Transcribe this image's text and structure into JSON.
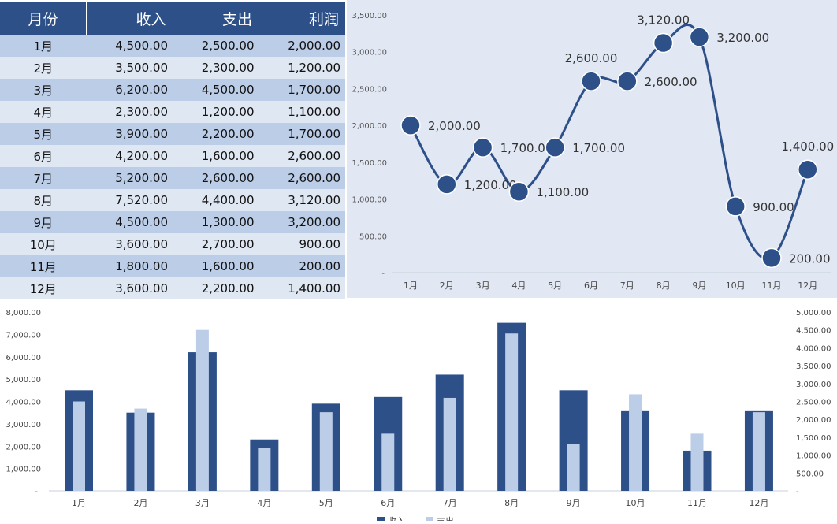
{
  "table": {
    "headers": [
      "月份",
      "收入",
      "支出",
      "利润"
    ],
    "rows": [
      [
        "1月",
        "4,500.00",
        "2,500.00",
        "2,000.00"
      ],
      [
        "2月",
        "3,500.00",
        "2,300.00",
        "1,200.00"
      ],
      [
        "3月",
        "6,200.00",
        "4,500.00",
        "1,700.00"
      ],
      [
        "4月",
        "2,300.00",
        "1,200.00",
        "1,100.00"
      ],
      [
        "5月",
        "3,900.00",
        "2,200.00",
        "1,700.00"
      ],
      [
        "6月",
        "4,200.00",
        "1,600.00",
        "2,600.00"
      ],
      [
        "7月",
        "5,200.00",
        "2,600.00",
        "2,600.00"
      ],
      [
        "8月",
        "7,520.00",
        "4,400.00",
        "3,120.00"
      ],
      [
        "9月",
        "4,500.00",
        "1,300.00",
        "3,200.00"
      ],
      [
        "10月",
        "3,600.00",
        "2,700.00",
        "900.00"
      ],
      [
        "11月",
        "1,800.00",
        "1,600.00",
        "200.00"
      ],
      [
        "12月",
        "3,600.00",
        "2,200.00",
        "1,400.00"
      ]
    ]
  },
  "chart_data": [
    {
      "type": "line",
      "title": "",
      "series": [
        {
          "name": "利润",
          "values": [
            2000,
            1200,
            1700,
            1100,
            1700,
            2600,
            2600,
            3120,
            3200,
            900,
            200,
            1400
          ]
        }
      ],
      "categories": [
        "1月",
        "2月",
        "3月",
        "4月",
        "5月",
        "6月",
        "7月",
        "8月",
        "9月",
        "10月",
        "11月",
        "12月"
      ],
      "ylim": [
        0,
        3500
      ],
      "yticks": [
        "-",
        "500.00",
        "1,000.00",
        "1,500.00",
        "2,000.00",
        "2,500.00",
        "3,000.00",
        "3,500.00"
      ],
      "data_labels": [
        "2,000.00",
        "1,200.00",
        "1,700.00",
        "1,100.00",
        "1,700.00",
        "2,600.00",
        "2,600.00",
        "3,120.00",
        "3,200.00",
        "900.00",
        "200.00",
        "1,400.00"
      ],
      "color": "#2e5089",
      "smooth": true
    },
    {
      "type": "bar",
      "categories": [
        "1月",
        "2月",
        "3月",
        "4月",
        "5月",
        "6月",
        "7月",
        "8月",
        "9月",
        "10月",
        "11月",
        "12月"
      ],
      "series": [
        {
          "name": "收入",
          "axis": "left",
          "values": [
            4500,
            3500,
            6200,
            2300,
            3900,
            4200,
            5200,
            7520,
            4500,
            3600,
            1800,
            3600
          ],
          "color": "#2e5089"
        },
        {
          "name": "支出",
          "axis": "right",
          "values": [
            2500,
            2300,
            4500,
            1200,
            2200,
            1600,
            2600,
            4400,
            1300,
            2700,
            1600,
            2200
          ],
          "color": "#bccde8"
        }
      ],
      "ylim_left": [
        0,
        8000
      ],
      "ylim_right": [
        0,
        5000
      ],
      "yticks_left": [
        "-",
        "1,000.00",
        "2,000.00",
        "3,000.00",
        "4,000.00",
        "5,000.00",
        "6,000.00",
        "7,000.00",
        "8,000.00"
      ],
      "yticks_right": [
        "-",
        "500.00",
        "1,000.00",
        "1,500.00",
        "2,000.00",
        "2,500.00",
        "3,000.00",
        "3,500.00",
        "4,000.00",
        "4,500.00",
        "5,000.00"
      ],
      "legend": [
        "收入",
        "支出"
      ],
      "legend_position": "bottom"
    }
  ]
}
